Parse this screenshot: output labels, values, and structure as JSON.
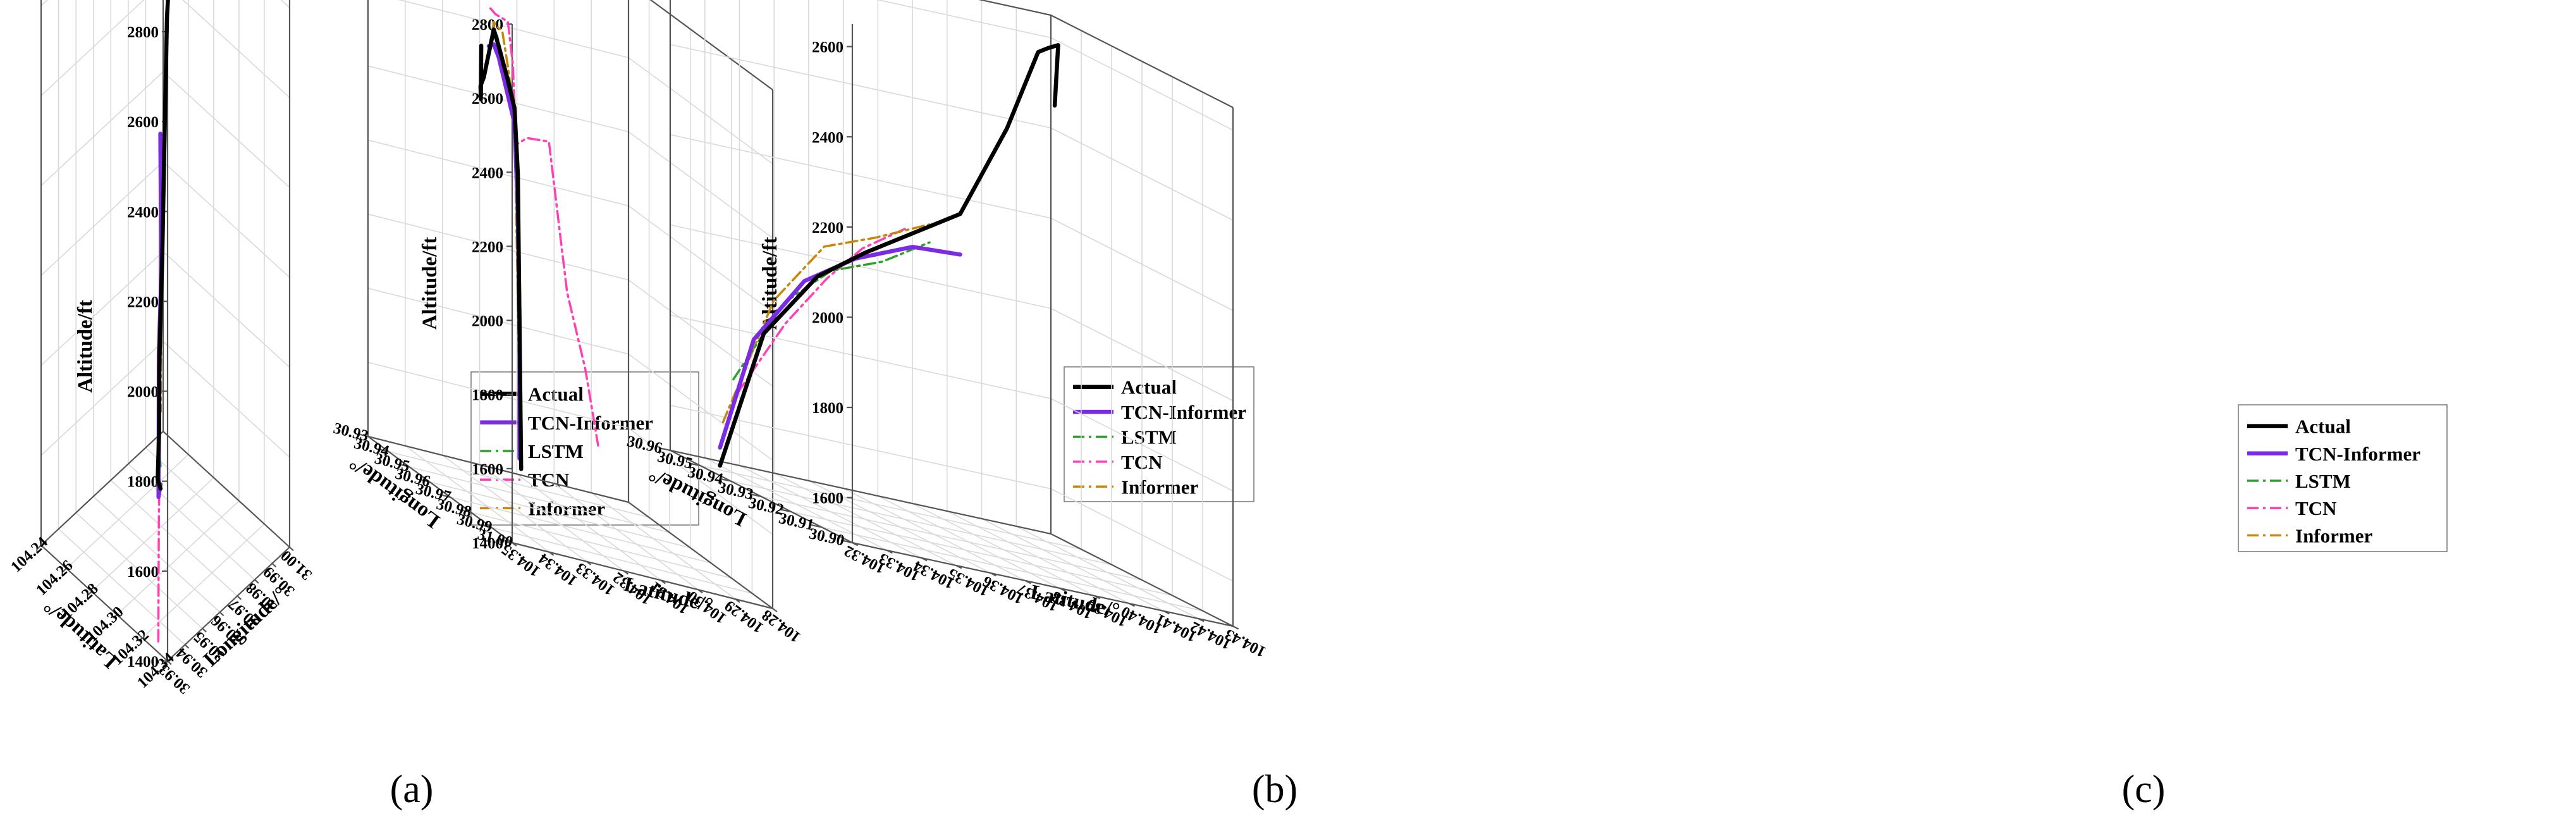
{
  "colors": {
    "Actual": "#000000",
    "TCN-Informer": "#7b2be2",
    "LSTM": "#2ca02c",
    "TCN": "#ff3fb4",
    "Informer": "#c8860a"
  },
  "chart_data": [
    {
      "panel": "(a)",
      "type": "line",
      "legend_position": "center-right",
      "zlabel": "Altitude/ft",
      "xlabel": "Latitude/°",
      "ylabel": "Longitude/°",
      "z_ticks": [
        "1400",
        "1600",
        "1800",
        "2000",
        "2200",
        "2400",
        "2600",
        "2800"
      ],
      "x_ticks": [
        "104.34",
        "104.32",
        "104.30",
        "104.28",
        "104.26",
        "104.24"
      ],
      "y_ticks": [
        "30.93",
        "30.94",
        "30.95",
        "30.96",
        "30.97",
        "30.98",
        "30.99",
        "31.00"
      ],
      "legend": [
        "Actual",
        "TCN-Informer",
        "LSTM",
        "TCN",
        "Informer"
      ],
      "series": [
        {
          "name": "Actual",
          "points": [
            [
              104.3,
              30.955,
              1590
            ],
            [
              104.295,
              30.957,
              1590
            ],
            [
              104.292,
              30.96,
              1680
            ],
            [
              104.288,
              30.963,
              1800
            ],
            [
              104.285,
              30.966,
              1920
            ],
            [
              104.282,
              30.969,
              2000
            ],
            [
              104.279,
              30.972,
              2150
            ],
            [
              104.276,
              30.975,
              2300
            ],
            [
              104.272,
              30.979,
              2480
            ],
            [
              104.268,
              30.984,
              2600
            ],
            [
              104.262,
              30.99,
              2750
            ],
            [
              104.256,
              30.996,
              2850
            ]
          ]
        },
        {
          "name": "TCN-Informer",
          "points": [
            [
              104.3,
              30.955,
              1600
            ],
            [
              104.297,
              30.956,
              1560
            ],
            [
              104.293,
              30.959,
              1680
            ],
            [
              104.289,
              30.962,
              1840
            ],
            [
              104.285,
              30.966,
              1950
            ],
            [
              104.281,
              30.969,
              2050
            ],
            [
              104.278,
              30.971,
              2180
            ],
            [
              104.275,
              30.973,
              2250
            ]
          ]
        },
        {
          "name": "LSTM",
          "points": [
            [
              104.3,
              30.955,
              1640
            ],
            [
              104.296,
              30.957,
              1660
            ],
            [
              104.292,
              30.96,
              1760
            ],
            [
              104.288,
              30.963,
              1880
            ],
            [
              104.284,
              30.967,
              1950
            ],
            [
              104.28,
              30.97,
              2080
            ],
            [
              104.277,
              30.972,
              2200
            ]
          ]
        },
        {
          "name": "TCN",
          "points": [
            [
              104.301,
              30.953,
              1260
            ],
            [
              104.3,
              30.954,
              1520
            ],
            [
              104.298,
              30.956,
              1680
            ],
            [
              104.294,
              30.959,
              1880
            ],
            [
              104.29,
              30.962,
              2040
            ],
            [
              104.286,
              30.965,
              2040
            ],
            [
              104.282,
              30.968,
              2100
            ],
            [
              104.279,
              30.971,
              2210
            ]
          ]
        },
        {
          "name": "Informer",
          "points": [
            [
              104.3,
              30.955,
              1870
            ],
            [
              104.299,
              30.955,
              1760
            ],
            [
              104.296,
              30.958,
              1740
            ],
            [
              104.292,
              30.961,
              1840
            ],
            [
              104.288,
              30.964,
              1940
            ],
            [
              104.284,
              30.967,
              1970
            ],
            [
              104.28,
              30.97,
              2090
            ],
            [
              104.277,
              30.972,
              2200
            ]
          ]
        }
      ]
    },
    {
      "panel": "(b)",
      "type": "line",
      "legend_position": "bottom-left",
      "zlabel": "Altitude/ft",
      "xlabel": "Longitude/°",
      "ylabel": "Latitude/°",
      "z_ticks": [
        "1400",
        "1600",
        "1800",
        "2000",
        "2200",
        "2400",
        "2600",
        "2800"
      ],
      "x_ticks": [
        "31.00",
        "30.99",
        "30.98",
        "30.97",
        "30.96",
        "30.95",
        "30.94",
        "30.93"
      ],
      "y_ticks": [
        "104.35",
        "104.34",
        "104.33",
        "104.32",
        "104.31",
        "104.30",
        "104.29",
        "104.28"
      ],
      "legend": [
        "Actual",
        "TCN-Informer",
        "LSTM",
        "TCN",
        "Informer"
      ],
      "series": [
        {
          "name": "Actual",
          "points": [
            [
              30.985,
              104.35,
              2680
            ],
            [
              30.983,
              104.349,
              2530
            ],
            [
              30.981,
              104.348,
              2560
            ],
            [
              30.979,
              104.346,
              2580
            ],
            [
              30.976,
              104.343,
              2640
            ],
            [
              30.973,
              104.34,
              2700
            ],
            [
              30.97,
              104.337,
              2650
            ],
            [
              30.967,
              104.333,
              2560
            ],
            [
              30.965,
              104.33,
              2480
            ],
            [
              30.963,
              104.328,
              2300
            ],
            [
              30.962,
              104.327,
              1900
            ],
            [
              30.961,
              104.326,
              1500
            ]
          ]
        },
        {
          "name": "TCN-Informer",
          "points": [
            [
              30.976,
              104.343,
              2660
            ],
            [
              30.973,
              104.34,
              2660
            ],
            [
              30.97,
              104.337,
              2620
            ],
            [
              30.967,
              104.333,
              2520
            ],
            [
              30.965,
              104.33,
              2440
            ],
            [
              30.963,
              104.328,
              2200
            ],
            [
              30.962,
              104.327,
              1900
            ],
            [
              30.962,
              104.327,
              1530
            ]
          ]
        },
        {
          "name": "LSTM",
          "points": [
            [
              30.974,
              104.341,
              2700
            ],
            [
              30.971,
              104.338,
              2680
            ],
            [
              30.968,
              104.335,
              2620
            ],
            [
              30.966,
              104.331,
              2520
            ],
            [
              30.964,
              104.329,
              2300
            ],
            [
              30.963,
              104.328,
              2000
            ],
            [
              30.962,
              104.327,
              1600
            ]
          ]
        },
        {
          "name": "TCN",
          "points": [
            [
              30.975,
              104.342,
              2760
            ],
            [
              30.972,
              104.339,
              2740
            ],
            [
              30.969,
              104.334,
              2720
            ],
            [
              30.966,
              104.331,
              2600
            ],
            [
              30.964,
              104.329,
              2380
            ],
            [
              30.962,
              104.325,
              2400
            ],
            [
              30.96,
              104.318,
              2400
            ],
            [
              30.958,
              104.312,
              2000
            ],
            [
              30.956,
              104.306,
              1800
            ],
            [
              30.955,
              104.302,
              1600
            ]
          ]
        },
        {
          "name": "Informer",
          "points": [
            [
              30.976,
              104.343,
              2640
            ],
            [
              30.973,
              104.34,
              2720
            ],
            [
              30.97,
              104.336,
              2690
            ],
            [
              30.967,
              104.333,
              2600
            ],
            [
              30.965,
              104.33,
              2460
            ],
            [
              30.964,
              104.329,
              2200
            ],
            [
              30.963,
              104.328,
              1960
            ]
          ]
        }
      ]
    },
    {
      "panel": "(c)",
      "type": "line",
      "legend_position": "bottom-right",
      "zlabel": "Altitude/ft",
      "xlabel": "Longitude/°",
      "ylabel": "Latitude/°",
      "z_ticks": [
        "1600",
        "1800",
        "2000",
        "2200",
        "2400",
        "2600"
      ],
      "x_ticks": [
        "30.90",
        "30.91",
        "30.92",
        "30.93",
        "30.94",
        "30.95",
        "30.96"
      ],
      "y_ticks": [
        "104.32",
        "104.33",
        "104.34",
        "104.35",
        "104.36",
        "104.37",
        "104.38",
        "104.39",
        "104.40",
        "104.41",
        "104.42",
        "104.43"
      ],
      "legend": [
        "Actual",
        "TCN-Informer",
        "LSTM",
        "TCN",
        "Informer"
      ],
      "series": [
        {
          "name": "Actual",
          "points": [
            [
              30.955,
              104.33,
              1500
            ],
            [
              30.952,
              104.34,
              1820
            ],
            [
              30.948,
              104.352,
              1980
            ],
            [
              30.946,
              104.364,
              2060
            ],
            [
              30.944,
              104.376,
              2130
            ],
            [
              30.942,
              104.388,
              2200
            ],
            [
              30.938,
              104.398,
              2420
            ],
            [
              30.93,
              104.4,
              2620
            ],
            [
              30.922,
              104.396,
              2650
            ],
            [
              30.912,
              104.39,
              2680
            ],
            [
              30.904,
              104.382,
              2560
            ]
          ]
        },
        {
          "name": "TCN-Informer",
          "points": [
            [
              30.955,
              104.33,
              1540
            ],
            [
              30.953,
              104.338,
              1800
            ],
            [
              30.95,
              104.35,
              1960
            ],
            [
              30.947,
              104.362,
              2040
            ],
            [
              30.944,
              104.376,
              2100
            ],
            [
              30.942,
              104.388,
              2110
            ]
          ]
        },
        {
          "name": "LSTM",
          "points": [
            [
              30.954,
              104.333,
              1700
            ],
            [
              30.951,
              104.345,
              1900
            ],
            [
              30.948,
              104.356,
              2000
            ],
            [
              30.945,
              104.368,
              2050
            ],
            [
              30.943,
              104.38,
              2120
            ]
          ]
        },
        {
          "name": "TCN",
          "points": [
            [
              30.94,
              104.322,
              1700
            ],
            [
              30.938,
              104.334,
              1880
            ],
            [
              30.938,
              104.346,
              2000
            ],
            [
              30.94,
              104.358,
              2080
            ],
            [
              30.942,
              104.372,
              2140
            ]
          ]
        },
        {
          "name": "Informer",
          "points": [
            [
              30.954,
              104.33,
              1600
            ],
            [
              30.951,
              104.342,
              1900
            ],
            [
              30.948,
              104.354,
              2050
            ],
            [
              30.945,
              104.366,
              2100
            ],
            [
              30.943,
              104.38,
              2160
            ]
          ]
        }
      ]
    }
  ]
}
